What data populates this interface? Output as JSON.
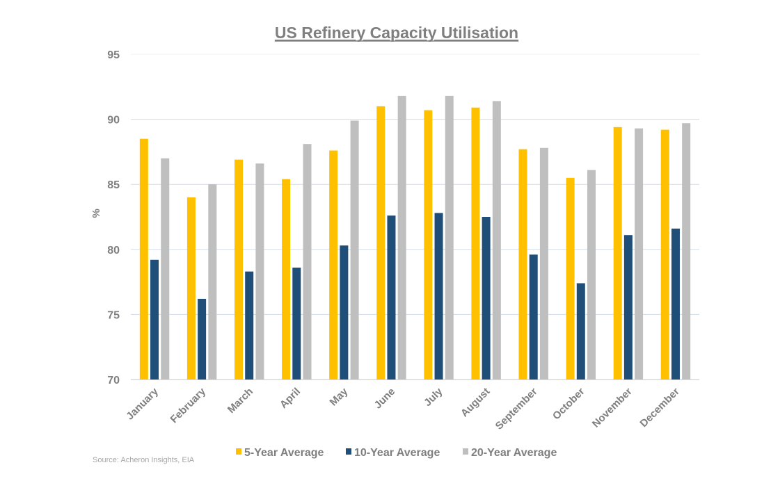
{
  "chart_data": {
    "type": "bar",
    "title": "US Refinery Capacity Utilisation",
    "xlabel": "",
    "ylabel": "%",
    "ylim": [
      70,
      95
    ],
    "yticks": [
      70,
      75,
      80,
      85,
      90,
      95
    ],
    "grid": true,
    "legend_position": "bottom",
    "categories": [
      "January",
      "February",
      "March",
      "April",
      "May",
      "June",
      "July",
      "August",
      "September",
      "October",
      "November",
      "December"
    ],
    "series": [
      {
        "name": "5-Year Average",
        "color": "#FFC000",
        "values": [
          88.5,
          84.0,
          86.9,
          85.4,
          87.6,
          91.0,
          90.7,
          90.9,
          87.7,
          85.5,
          89.4,
          89.2
        ]
      },
      {
        "name": "10-Year Average",
        "color": "#1F4E79",
        "values": [
          79.2,
          76.2,
          78.3,
          78.6,
          80.3,
          82.6,
          82.8,
          82.5,
          79.6,
          77.4,
          81.1,
          81.6
        ]
      },
      {
        "name": "20-Year Average",
        "color": "#BFBFBF",
        "values": [
          87.0,
          85.0,
          86.6,
          88.1,
          89.9,
          91.8,
          91.8,
          91.4,
          87.8,
          86.1,
          89.3,
          89.7
        ]
      }
    ],
    "source": "Source: Acheron Insights, EIA"
  }
}
